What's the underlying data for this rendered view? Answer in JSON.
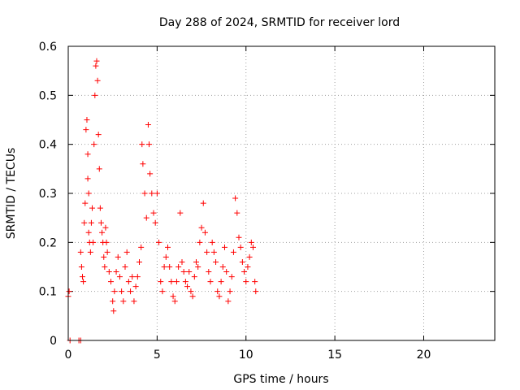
{
  "chart_data": {
    "type": "scatter",
    "title": "Day 288 of 2024, SRMTID for receiver lord",
    "xlabel": "GPS time / hours",
    "ylabel": "SRMTID / TECUs",
    "xlim": [
      0,
      24
    ],
    "ylim": [
      0,
      0.6
    ],
    "xticks": [
      0,
      5,
      10,
      15,
      20
    ],
    "xtick_labels": [
      "0",
      "5",
      "10",
      "15",
      "20"
    ],
    "yticks": [
      0,
      0.1,
      0.2,
      0.3,
      0.4,
      0.5,
      0.6
    ],
    "ytick_labels": [
      "0",
      "0.1",
      "0.2",
      "0.3",
      "0.4",
      "0.5",
      "0.6"
    ],
    "grid": true,
    "marker": "+",
    "color": "#ff0000",
    "series": [
      {
        "name": "SRMTID",
        "points": [
          [
            0.0,
            0.09
          ],
          [
            0.05,
            0.1
          ],
          [
            0.1,
            0.0
          ],
          [
            0.6,
            0.0
          ],
          [
            0.7,
            0.0
          ],
          [
            0.7,
            0.18
          ],
          [
            0.75,
            0.15
          ],
          [
            0.8,
            0.13
          ],
          [
            0.85,
            0.12
          ],
          [
            0.9,
            0.24
          ],
          [
            0.95,
            0.28
          ],
          [
            1.0,
            0.43
          ],
          [
            1.05,
            0.45
          ],
          [
            1.1,
            0.38
          ],
          [
            1.1,
            0.33
          ],
          [
            1.15,
            0.3
          ],
          [
            1.15,
            0.22
          ],
          [
            1.2,
            0.2
          ],
          [
            1.25,
            0.18
          ],
          [
            1.3,
            0.24
          ],
          [
            1.35,
            0.27
          ],
          [
            1.4,
            0.2
          ],
          [
            1.45,
            0.4
          ],
          [
            1.5,
            0.5
          ],
          [
            1.55,
            0.56
          ],
          [
            1.6,
            0.57
          ],
          [
            1.65,
            0.53
          ],
          [
            1.7,
            0.42
          ],
          [
            1.75,
            0.35
          ],
          [
            1.8,
            0.27
          ],
          [
            1.85,
            0.24
          ],
          [
            1.9,
            0.22
          ],
          [
            1.95,
            0.2
          ],
          [
            2.0,
            0.17
          ],
          [
            2.05,
            0.15
          ],
          [
            2.1,
            0.23
          ],
          [
            2.15,
            0.2
          ],
          [
            2.2,
            0.18
          ],
          [
            2.3,
            0.14
          ],
          [
            2.4,
            0.12
          ],
          [
            2.5,
            0.08
          ],
          [
            2.55,
            0.06
          ],
          [
            2.6,
            0.1
          ],
          [
            2.7,
            0.14
          ],
          [
            2.8,
            0.17
          ],
          [
            2.9,
            0.13
          ],
          [
            3.0,
            0.1
          ],
          [
            3.1,
            0.08
          ],
          [
            3.2,
            0.15
          ],
          [
            3.3,
            0.18
          ],
          [
            3.4,
            0.12
          ],
          [
            3.5,
            0.1
          ],
          [
            3.6,
            0.13
          ],
          [
            3.7,
            0.08
          ],
          [
            3.8,
            0.11
          ],
          [
            3.9,
            0.13
          ],
          [
            4.0,
            0.16
          ],
          [
            4.1,
            0.19
          ],
          [
            4.15,
            0.4
          ],
          [
            4.2,
            0.36
          ],
          [
            4.3,
            0.3
          ],
          [
            4.4,
            0.25
          ],
          [
            4.5,
            0.44
          ],
          [
            4.55,
            0.4
          ],
          [
            4.6,
            0.34
          ],
          [
            4.7,
            0.3
          ],
          [
            4.8,
            0.26
          ],
          [
            4.9,
            0.24
          ],
          [
            5.0,
            0.3
          ],
          [
            5.1,
            0.2
          ],
          [
            5.2,
            0.12
          ],
          [
            5.3,
            0.1
          ],
          [
            5.4,
            0.15
          ],
          [
            5.5,
            0.17
          ],
          [
            5.6,
            0.19
          ],
          [
            5.7,
            0.15
          ],
          [
            5.8,
            0.12
          ],
          [
            5.9,
            0.09
          ],
          [
            6.0,
            0.08
          ],
          [
            6.1,
            0.12
          ],
          [
            6.2,
            0.15
          ],
          [
            6.3,
            0.26
          ],
          [
            6.4,
            0.16
          ],
          [
            6.5,
            0.14
          ],
          [
            6.6,
            0.12
          ],
          [
            6.7,
            0.11
          ],
          [
            6.8,
            0.14
          ],
          [
            6.9,
            0.1
          ],
          [
            7.0,
            0.09
          ],
          [
            7.1,
            0.13
          ],
          [
            7.2,
            0.16
          ],
          [
            7.3,
            0.15
          ],
          [
            7.4,
            0.2
          ],
          [
            7.5,
            0.23
          ],
          [
            7.6,
            0.28
          ],
          [
            7.7,
            0.22
          ],
          [
            7.8,
            0.18
          ],
          [
            7.9,
            0.14
          ],
          [
            8.0,
            0.12
          ],
          [
            8.1,
            0.2
          ],
          [
            8.2,
            0.18
          ],
          [
            8.3,
            0.16
          ],
          [
            8.4,
            0.1
          ],
          [
            8.5,
            0.09
          ],
          [
            8.6,
            0.12
          ],
          [
            8.7,
            0.15
          ],
          [
            8.8,
            0.19
          ],
          [
            8.9,
            0.14
          ],
          [
            9.0,
            0.08
          ],
          [
            9.1,
            0.1
          ],
          [
            9.2,
            0.13
          ],
          [
            9.3,
            0.18
          ],
          [
            9.4,
            0.29
          ],
          [
            9.5,
            0.26
          ],
          [
            9.6,
            0.21
          ],
          [
            9.7,
            0.19
          ],
          [
            9.8,
            0.16
          ],
          [
            9.9,
            0.14
          ],
          [
            10.0,
            0.12
          ],
          [
            10.1,
            0.15
          ],
          [
            10.2,
            0.17
          ],
          [
            10.3,
            0.2
          ],
          [
            10.4,
            0.19
          ],
          [
            10.5,
            0.12
          ],
          [
            10.55,
            0.1
          ]
        ]
      }
    ]
  }
}
